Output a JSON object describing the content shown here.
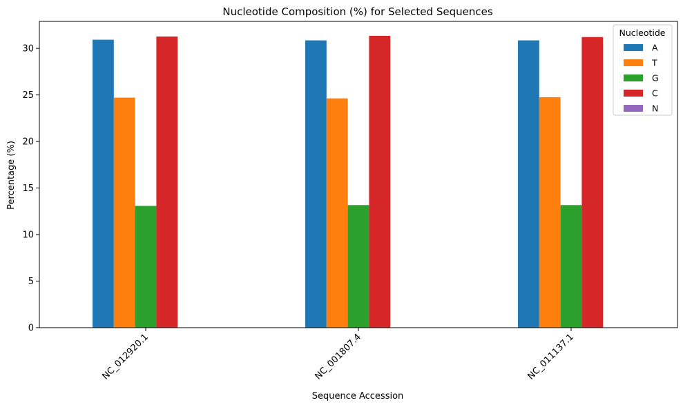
{
  "chart_data": {
    "type": "bar",
    "title": "Nucleotide Composition (%) for Selected Sequences",
    "xlabel": "Sequence Accession",
    "ylabel": "Percentage (%)",
    "categories": [
      "NC_012920.1",
      "NC_001807.4",
      "NC_011137.1"
    ],
    "ylim": [
      0,
      32.9
    ],
    "yticks": [
      0,
      5,
      10,
      15,
      20,
      25,
      30
    ],
    "grid": false,
    "legend": {
      "title": "Nucleotide",
      "placement": "top-right"
    },
    "series": [
      {
        "name": "A",
        "color": "#1f77b4",
        "values": [
          30.93,
          30.86,
          30.86
        ]
      },
      {
        "name": "T",
        "color": "#ff7f0e",
        "values": [
          24.71,
          24.63,
          24.76
        ]
      },
      {
        "name": "G",
        "color": "#2ca02c",
        "values": [
          13.08,
          13.17,
          13.17
        ]
      },
      {
        "name": "C",
        "color": "#d62728",
        "values": [
          31.28,
          31.35,
          31.22
        ]
      },
      {
        "name": "N",
        "color": "#9467bd",
        "values": [
          0,
          0,
          0
        ]
      }
    ]
  }
}
